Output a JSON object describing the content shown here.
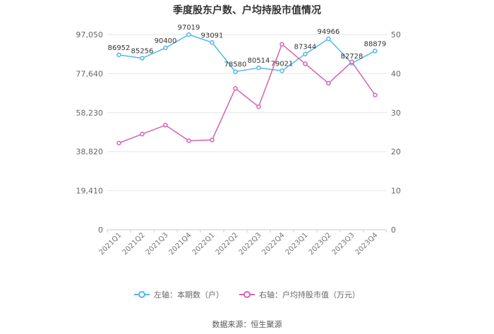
{
  "chart_data": {
    "type": "line",
    "title": "季度股东户数、户均持股市值情况",
    "categories": [
      "2021Q1",
      "2021Q2",
      "2021Q3",
      "2021Q4",
      "2022Q1",
      "2022Q2",
      "2022Q3",
      "2022Q4",
      "2023Q1",
      "2023Q2",
      "2023Q3",
      "2023Q4"
    ],
    "left_axis": {
      "ticks": [
        "0",
        "19,410",
        "38,820",
        "58,230",
        "77,640",
        "97,050"
      ],
      "ylim": [
        0,
        97050
      ]
    },
    "right_axis": {
      "ticks": [
        "0",
        "10",
        "20",
        "30",
        "40",
        "50"
      ],
      "ylim": [
        0,
        50
      ]
    },
    "series": [
      {
        "name": "左轴：本期数（户）",
        "axis": "left",
        "color": "#4fb8e8",
        "values": [
          86952,
          85256,
          90400,
          97019,
          93091,
          78580,
          80514,
          79021,
          87344,
          94966,
          82728,
          88879
        ],
        "labels": [
          "86952",
          "85256",
          "90400",
          "97019",
          "93091",
          "78580",
          "80514",
          "79021",
          "87344",
          "94966",
          "82728",
          "88879"
        ]
      },
      {
        "name": "右轴：户均持股市值（万元）",
        "axis": "right",
        "color": "#d662b0",
        "values": [
          22.2,
          24.5,
          26.8,
          22.8,
          23.0,
          36.2,
          31.5,
          47.5,
          42.5,
          37.5,
          43.0,
          34.5
        ]
      }
    ],
    "grid": true,
    "legend_position": "bottom"
  },
  "source_text": "数据来源：恒生聚源"
}
